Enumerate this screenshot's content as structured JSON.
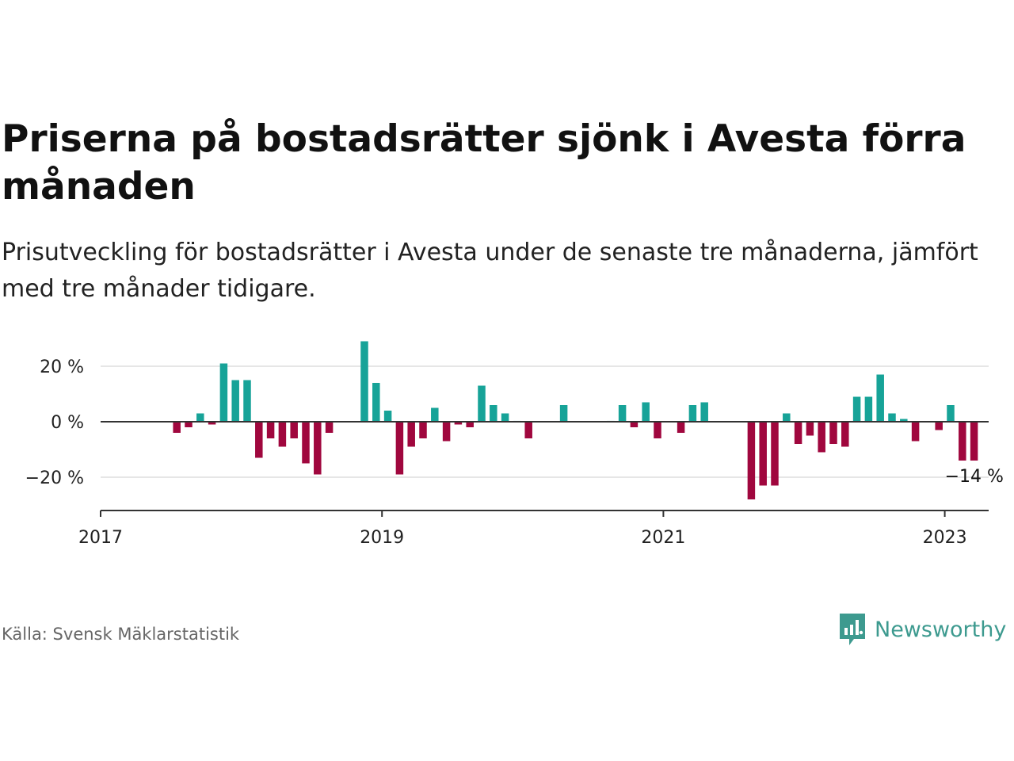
{
  "header": {
    "title": "Priserna på bostadsrätter sjönk i Avesta förra månaden",
    "subtitle": "Prisutveckling för bostadsrätter i Avesta under de senaste tre månaderna, jämfört med tre månader tidigare."
  },
  "footer": {
    "source": "Källa: Svensk Mäklarstatistik",
    "brand": "Newsworthy",
    "brand_icon": "bar-chart-speech-bubble-icon"
  },
  "chart_data": {
    "type": "bar",
    "title": "Priserna på bostadsrätter sjönk i Avesta förra månaden",
    "subtitle": "Prisutveckling för bostadsrätter i Avesta under de senaste tre månaderna, jämfört med tre månader tidigare.",
    "x_start": "2017-01",
    "xlim": [
      "2017-01",
      "2023-05"
    ],
    "x_ticks": [
      "2017",
      "2019",
      "2021",
      "2023"
    ],
    "ylim": [
      -32,
      30
    ],
    "y_ticks": [
      20,
      0,
      -20
    ],
    "y_tick_labels": [
      "20 %",
      "0 %",
      "−20 %"
    ],
    "grid": "horizontal",
    "colors": {
      "positive": "#17a398",
      "negative": "#a0073e",
      "grid": "#dddddd",
      "axis": "#333333"
    },
    "last_value_label": "−14 %",
    "months": [
      "2017-01",
      "2017-02",
      "2017-03",
      "2017-04",
      "2017-05",
      "2017-06",
      "2017-07",
      "2017-08",
      "2017-09",
      "2017-10",
      "2017-11",
      "2017-12",
      "2018-01",
      "2018-02",
      "2018-03",
      "2018-04",
      "2018-05",
      "2018-06",
      "2018-07",
      "2018-08",
      "2018-09",
      "2018-10",
      "2018-11",
      "2018-12",
      "2019-01",
      "2019-02",
      "2019-03",
      "2019-04",
      "2019-05",
      "2019-06",
      "2019-07",
      "2019-08",
      "2019-09",
      "2019-10",
      "2019-11",
      "2019-12",
      "2020-01",
      "2020-02",
      "2020-03",
      "2020-04",
      "2020-05",
      "2020-06",
      "2020-07",
      "2020-08",
      "2020-09",
      "2020-10",
      "2020-11",
      "2020-12",
      "2021-01",
      "2021-02",
      "2021-03",
      "2021-04",
      "2021-05",
      "2021-06",
      "2021-07",
      "2021-08",
      "2021-09",
      "2021-10",
      "2021-11",
      "2021-12",
      "2022-01",
      "2022-02",
      "2022-03",
      "2022-04",
      "2022-05",
      "2022-06",
      "2022-07",
      "2022-08",
      "2022-09",
      "2022-10",
      "2022-11",
      "2022-12",
      "2023-01",
      "2023-02",
      "2023-03"
    ],
    "values": [
      null,
      null,
      null,
      null,
      null,
      null,
      -4,
      -2,
      3,
      -1,
      21,
      15,
      15,
      -13,
      -6,
      -9,
      -6,
      -15,
      -19,
      -4,
      null,
      null,
      29,
      14,
      4,
      -19,
      -9,
      -6,
      5,
      -7,
      -1,
      -2,
      13,
      6,
      3,
      0.3,
      -6,
      null,
      null,
      6,
      null,
      null,
      null,
      0.3,
      6,
      -2,
      7,
      -6,
      null,
      -4,
      6,
      7,
      null,
      null,
      null,
      -28,
      -23,
      -23,
      3,
      -8,
      -5,
      -11,
      -8,
      -9,
      9,
      9,
      17,
      3,
      1,
      -7,
      null,
      -3,
      6,
      -14,
      -14
    ]
  }
}
